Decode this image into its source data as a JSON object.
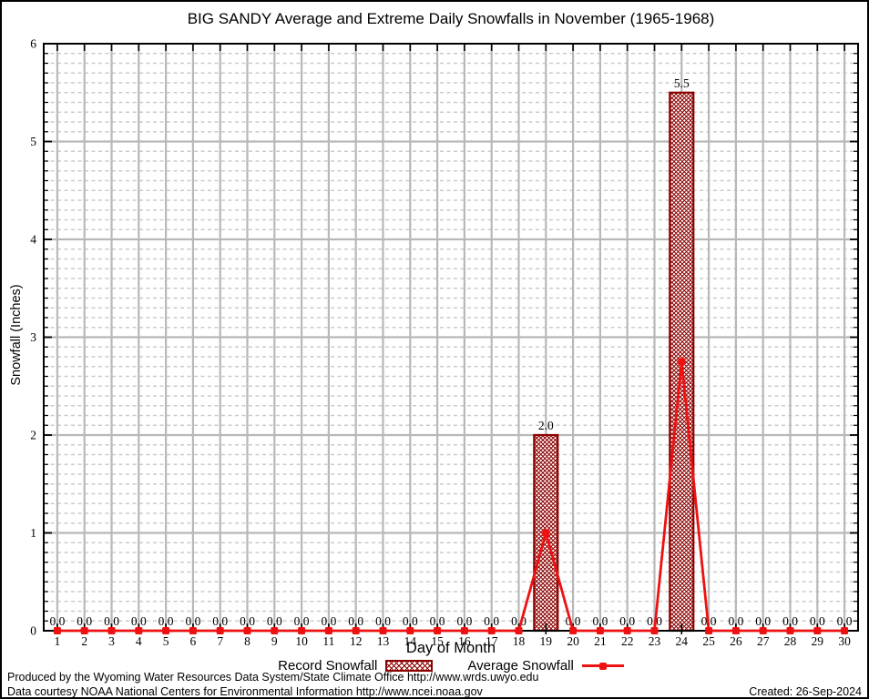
{
  "chart_data": {
    "type": "bar",
    "title": "BIG SANDY Average and Extreme Daily Snowfalls in November (1965-1968)",
    "xlabel": "Day of Month",
    "ylabel": "Snowfall (Inches)",
    "x": [
      1,
      2,
      3,
      4,
      5,
      6,
      7,
      8,
      9,
      10,
      11,
      12,
      13,
      14,
      15,
      16,
      17,
      18,
      19,
      20,
      21,
      22,
      23,
      24,
      25,
      26,
      27,
      28,
      29,
      30
    ],
    "xlim": [
      0.5,
      30.5
    ],
    "ylim": [
      0,
      6
    ],
    "yticks": [
      0,
      1,
      2,
      3,
      4,
      5,
      6
    ],
    "y_minor_step": 0.1,
    "grid": true,
    "legend_position": "bottom",
    "series": [
      {
        "name": "Record Snowfall",
        "type": "bar",
        "color": "#8b0000",
        "values": [
          0,
          0,
          0,
          0,
          0,
          0,
          0,
          0,
          0,
          0,
          0,
          0,
          0,
          0,
          0,
          0,
          0,
          0,
          2.0,
          0,
          0,
          0,
          0,
          5.5,
          0,
          0,
          0,
          0,
          0,
          0
        ]
      },
      {
        "name": "Average Snowfall",
        "type": "line",
        "color": "#ee1111",
        "values": [
          0,
          0,
          0,
          0,
          0,
          0,
          0,
          0,
          0,
          0,
          0,
          0,
          0,
          0,
          0,
          0,
          0,
          0,
          1.0,
          0,
          0,
          0,
          0,
          2.75,
          0,
          0,
          0,
          0,
          0,
          0
        ]
      }
    ],
    "bar_labels": [
      "0.0",
      "0.0",
      "0.0",
      "0.0",
      "0.0",
      "0.0",
      "0.0",
      "0.0",
      "0.0",
      "0.0",
      "0.0",
      "0.0",
      "0.0",
      "0.0",
      "0.0",
      "0.0",
      "0.0",
      "0.0",
      "2.0",
      "0.0",
      "0.0",
      "0.0",
      "0.0",
      "5.5",
      "0.0",
      "0.0",
      "0.0",
      "0.0",
      "0.0",
      "0.0"
    ]
  },
  "colors": {
    "bar": "#8b0000",
    "line": "#ee1111",
    "grid_major": "#b8b8b8",
    "grid_minor": "#cbcbcb",
    "frame": "#000000"
  },
  "footer": {
    "line1": "Produced by the Wyoming Water Resources Data System/State Climate Office http://www.wrds.uwyo.edu",
    "line2": "Data courtesy NOAA National Centers for Environmental Information http://www.ncei.noaa.gov",
    "created": "Created: 26-Sep-2024"
  }
}
